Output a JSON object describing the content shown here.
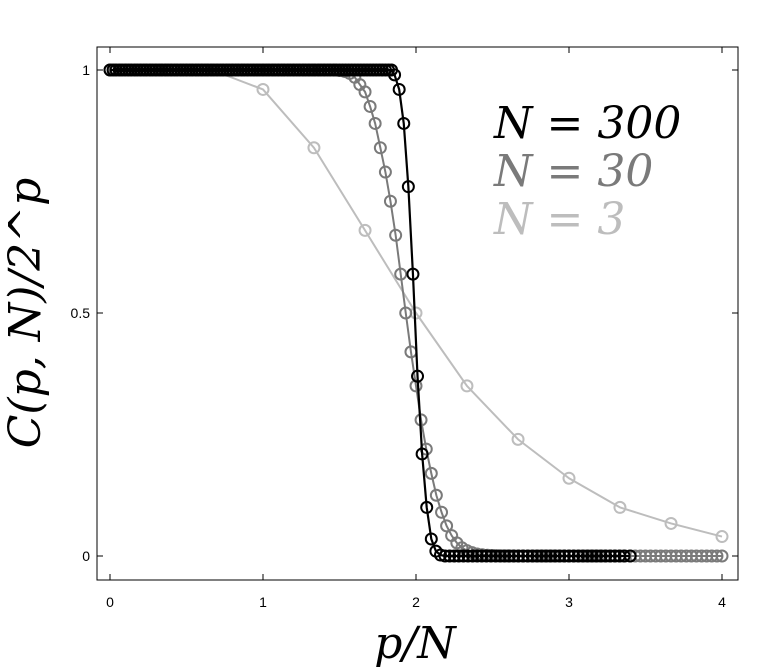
{
  "chart_data": {
    "type": "line",
    "title": "",
    "xlabel": "p/N",
    "ylabel": "C(p, N)/2^p",
    "xlim": [
      0,
      4
    ],
    "ylim": [
      0,
      1
    ],
    "xticks": [
      {
        "value": 0,
        "label": "0"
      },
      {
        "value": 1,
        "label": "1"
      },
      {
        "value": 2,
        "label": "2"
      },
      {
        "value": 3,
        "label": "3"
      },
      {
        "value": 4,
        "label": "4"
      }
    ],
    "yticks": [
      {
        "value": 0,
        "label": "0"
      },
      {
        "value": 0.5,
        "label": "0.5"
      },
      {
        "value": 1,
        "label": "1"
      }
    ],
    "grid": false,
    "legend_position": "top-right",
    "series": [
      {
        "name": "N = 300",
        "color": "#000000",
        "marker": "open-circle",
        "style": "line-with-markers",
        "x": [
          0.0,
          0.02,
          0.04,
          0.06,
          0.08,
          0.1,
          0.12,
          0.14,
          0.16,
          0.18,
          0.2,
          0.22,
          0.24,
          0.26,
          0.28,
          0.3,
          0.32,
          0.34,
          0.36,
          0.38,
          0.4,
          0.42,
          0.44,
          0.46,
          0.48,
          0.5,
          0.52,
          0.54,
          0.56,
          0.58,
          0.6,
          0.62,
          0.64,
          0.66,
          0.68,
          0.7,
          0.72,
          0.74,
          0.76,
          0.78,
          0.8,
          0.82,
          0.84,
          0.86,
          0.88,
          0.9,
          0.92,
          0.94,
          0.96,
          0.98,
          1.0,
          1.02,
          1.04,
          1.06,
          1.08,
          1.1,
          1.12,
          1.14,
          1.16,
          1.18,
          1.2,
          1.22,
          1.24,
          1.26,
          1.28,
          1.3,
          1.32,
          1.34,
          1.36,
          1.38,
          1.4,
          1.42,
          1.44,
          1.46,
          1.48,
          1.5,
          1.52,
          1.54,
          1.56,
          1.58,
          1.6,
          1.62,
          1.64,
          1.66,
          1.68,
          1.7,
          1.72,
          1.74,
          1.76,
          1.78,
          1.8,
          1.82,
          1.84,
          1.86,
          1.89,
          1.92,
          1.95,
          1.98,
          2.01,
          2.04,
          2.07,
          2.1,
          2.13,
          2.16,
          2.19,
          2.22,
          2.25,
          2.28,
          2.31,
          2.34,
          2.37,
          2.4,
          2.43,
          2.46,
          2.49,
          2.52,
          2.55,
          2.58,
          2.61,
          2.64,
          2.67,
          2.7,
          2.73,
          2.76,
          2.79,
          2.82,
          2.85,
          2.88,
          2.91,
          2.94,
          2.97,
          3.0,
          3.03,
          3.06,
          3.09,
          3.12,
          3.15,
          3.18,
          3.21,
          3.24,
          3.27,
          3.3,
          3.33,
          3.36,
          3.4
        ],
        "y": [
          1,
          1,
          1,
          1,
          1,
          1,
          1,
          1,
          1,
          1,
          1,
          1,
          1,
          1,
          1,
          1,
          1,
          1,
          1,
          1,
          1,
          1,
          1,
          1,
          1,
          1,
          1,
          1,
          1,
          1,
          1,
          1,
          1,
          1,
          1,
          1,
          1,
          1,
          1,
          1,
          1,
          1,
          1,
          1,
          1,
          1,
          1,
          1,
          1,
          1,
          1,
          1,
          1,
          1,
          1,
          1,
          1,
          1,
          1,
          1,
          1,
          1,
          1,
          1,
          1,
          1,
          1,
          1,
          1,
          1,
          1,
          1,
          1,
          1,
          1,
          1,
          1,
          1,
          1,
          1,
          1,
          1,
          1,
          1,
          1,
          1,
          1,
          1,
          1,
          1,
          1,
          1,
          1,
          0.99,
          0.96,
          0.89,
          0.76,
          0.58,
          0.37,
          0.21,
          0.1,
          0.035,
          0.01,
          0.002,
          0,
          0,
          0,
          0,
          0,
          0,
          0,
          0,
          0,
          0,
          0,
          0,
          0,
          0,
          0,
          0,
          0,
          0,
          0,
          0,
          0,
          0,
          0,
          0,
          0,
          0,
          0,
          0,
          0,
          0,
          0,
          0,
          0,
          0,
          0,
          0,
          0,
          0,
          0,
          0,
          0
        ]
      },
      {
        "name": "N = 30",
        "color": "#7a7a7a",
        "marker": "open-circle",
        "style": "line-with-markers",
        "x": [
          0.0,
          0.033,
          0.067,
          0.1,
          0.133,
          0.167,
          0.2,
          0.233,
          0.267,
          0.3,
          0.333,
          0.367,
          0.4,
          0.433,
          0.467,
          0.5,
          0.533,
          0.567,
          0.6,
          0.633,
          0.667,
          0.7,
          0.733,
          0.767,
          0.8,
          0.833,
          0.867,
          0.9,
          0.933,
          0.967,
          1.0,
          1.033,
          1.067,
          1.1,
          1.133,
          1.167,
          1.2,
          1.233,
          1.267,
          1.3,
          1.333,
          1.367,
          1.4,
          1.433,
          1.467,
          1.5,
          1.533,
          1.567,
          1.6,
          1.633,
          1.667,
          1.7,
          1.733,
          1.767,
          1.8,
          1.833,
          1.867,
          1.9,
          1.933,
          1.967,
          2.0,
          2.033,
          2.067,
          2.1,
          2.133,
          2.167,
          2.2,
          2.233,
          2.267,
          2.3,
          2.333,
          2.367,
          2.4,
          2.433,
          2.467,
          2.5,
          2.533,
          2.567,
          2.6,
          2.633,
          2.667,
          2.7,
          2.733,
          2.767,
          2.8,
          2.833,
          2.867,
          2.9,
          2.933,
          2.967,
          3.0,
          3.033,
          3.067,
          3.1,
          3.133,
          3.167,
          3.2,
          3.233,
          3.267,
          3.3,
          3.333,
          3.367,
          3.4,
          3.433,
          3.467,
          3.5,
          3.533,
          3.567,
          3.6,
          3.633,
          3.667,
          3.7,
          3.733,
          3.767,
          3.8,
          3.833,
          3.867,
          3.9,
          3.933,
          3.967,
          4.0
        ],
        "y": [
          1,
          1,
          1,
          1,
          1,
          1,
          1,
          1,
          1,
          1,
          1,
          1,
          1,
          1,
          1,
          1,
          1,
          1,
          1,
          1,
          1,
          1,
          1,
          1,
          1,
          1,
          1,
          1,
          1,
          1,
          1,
          1,
          1,
          1,
          1,
          1,
          1,
          1,
          1,
          1,
          1,
          1,
          1,
          1,
          1,
          0.999,
          0.997,
          0.993,
          0.985,
          0.97,
          0.955,
          0.925,
          0.89,
          0.84,
          0.79,
          0.73,
          0.66,
          0.58,
          0.5,
          0.42,
          0.35,
          0.28,
          0.22,
          0.17,
          0.125,
          0.09,
          0.062,
          0.042,
          0.027,
          0.017,
          0.011,
          0.007,
          0.004,
          0.0025,
          0.0015,
          0.001,
          0.0005,
          0.0003,
          0.0002,
          0.0001,
          0,
          0,
          0,
          0,
          0,
          0,
          0,
          0,
          0,
          0,
          0,
          0,
          0,
          0,
          0,
          0,
          0,
          0,
          0,
          0,
          0,
          0,
          0,
          0,
          0,
          0,
          0,
          0,
          0,
          0,
          0,
          0,
          0,
          0,
          0,
          0,
          0,
          0,
          0,
          0,
          0
        ]
      },
      {
        "name": "N = 3",
        "color": "#bdbdbd",
        "marker": "open-circle",
        "style": "line-with-markers",
        "x": [
          0.0,
          0.333,
          0.667,
          1.0,
          1.333,
          1.667,
          2.0,
          2.333,
          2.667,
          3.0,
          3.333,
          3.667,
          4.0
        ],
        "y": [
          1,
          1,
          1,
          0.96,
          0.84,
          0.67,
          0.5,
          0.35,
          0.24,
          0.16,
          0.1,
          0.067,
          0.04
        ]
      }
    ]
  }
}
